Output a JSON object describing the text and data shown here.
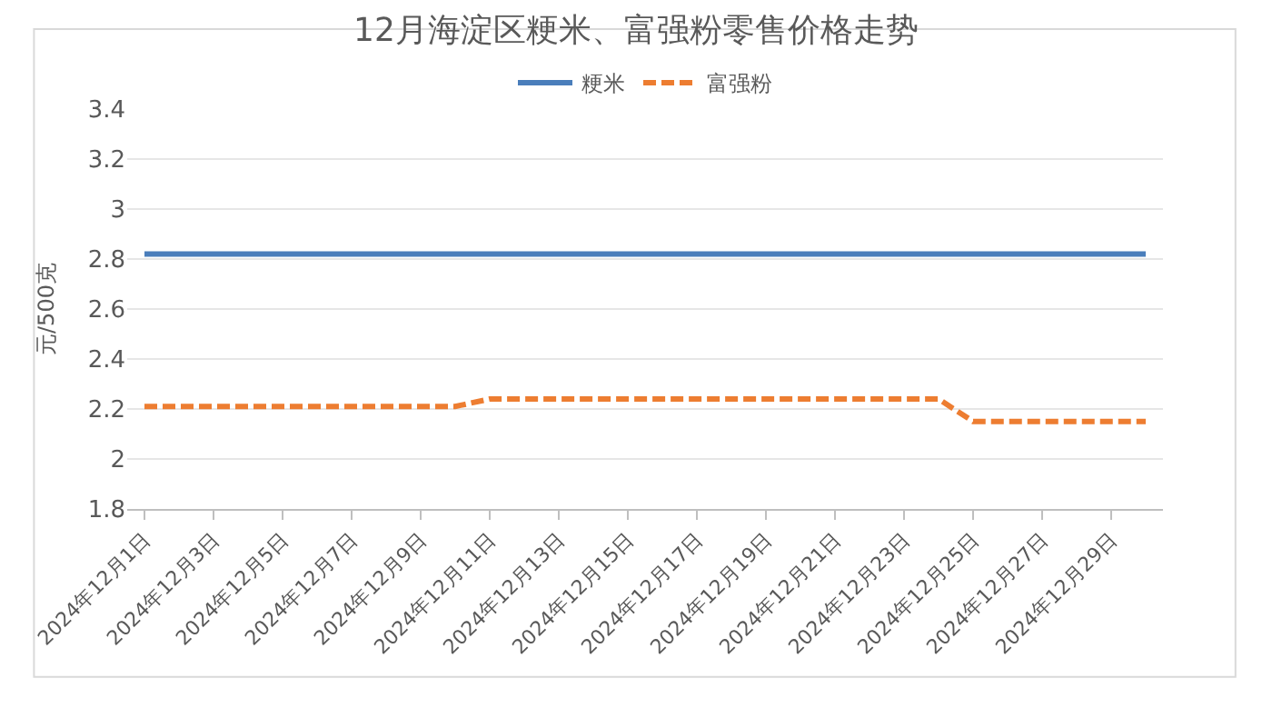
{
  "chart_data": {
    "type": "line",
    "title": "12月海淀区粳米、富强粉零售价格走势",
    "ylabel": "元/500克",
    "categories": [
      "2024年12月1日",
      null,
      "2024年12月3日",
      null,
      "2024年12月5日",
      null,
      "2024年12月7日",
      null,
      "2024年12月9日",
      null,
      "2024年12月11日",
      null,
      "2024年12月13日",
      null,
      "2024年12月15日",
      null,
      "2024年12月17日",
      null,
      "2024年12月19日",
      null,
      "2024年12月21日",
      null,
      "2024年12月23日",
      null,
      "2024年12月25日",
      null,
      "2024年12月27日",
      null,
      "2024年12月29日",
      null
    ],
    "series": [
      {
        "name": "粳米",
        "color": "#4a7ebb",
        "line_style": "solid",
        "values": [
          2.82,
          2.82,
          2.82,
          2.82,
          2.82,
          2.82,
          2.82,
          2.82,
          2.82,
          2.82,
          2.82,
          2.82,
          2.82,
          2.82,
          2.82,
          2.82,
          2.82,
          2.82,
          2.82,
          2.82,
          2.82,
          2.82,
          2.82,
          2.82,
          2.82,
          2.82,
          2.82,
          2.82,
          2.82,
          2.82
        ]
      },
      {
        "name": "富强粉",
        "color": "#ed7d31",
        "line_style": "dashed",
        "values": [
          2.21,
          2.21,
          2.21,
          2.21,
          2.21,
          2.21,
          2.21,
          2.21,
          2.21,
          2.21,
          2.24,
          2.24,
          2.24,
          2.24,
          2.24,
          2.24,
          2.24,
          2.24,
          2.24,
          2.24,
          2.24,
          2.24,
          2.24,
          2.24,
          2.15,
          2.15,
          2.15,
          2.15,
          2.15,
          2.15
        ]
      }
    ],
    "ylim": [
      1.8,
      3.4
    ],
    "yticks": [
      1.8,
      2,
      2.2,
      2.4,
      2.6,
      2.8,
      3,
      3.2,
      3.4
    ],
    "grid": "y",
    "legend": "top",
    "marker": "none"
  }
}
